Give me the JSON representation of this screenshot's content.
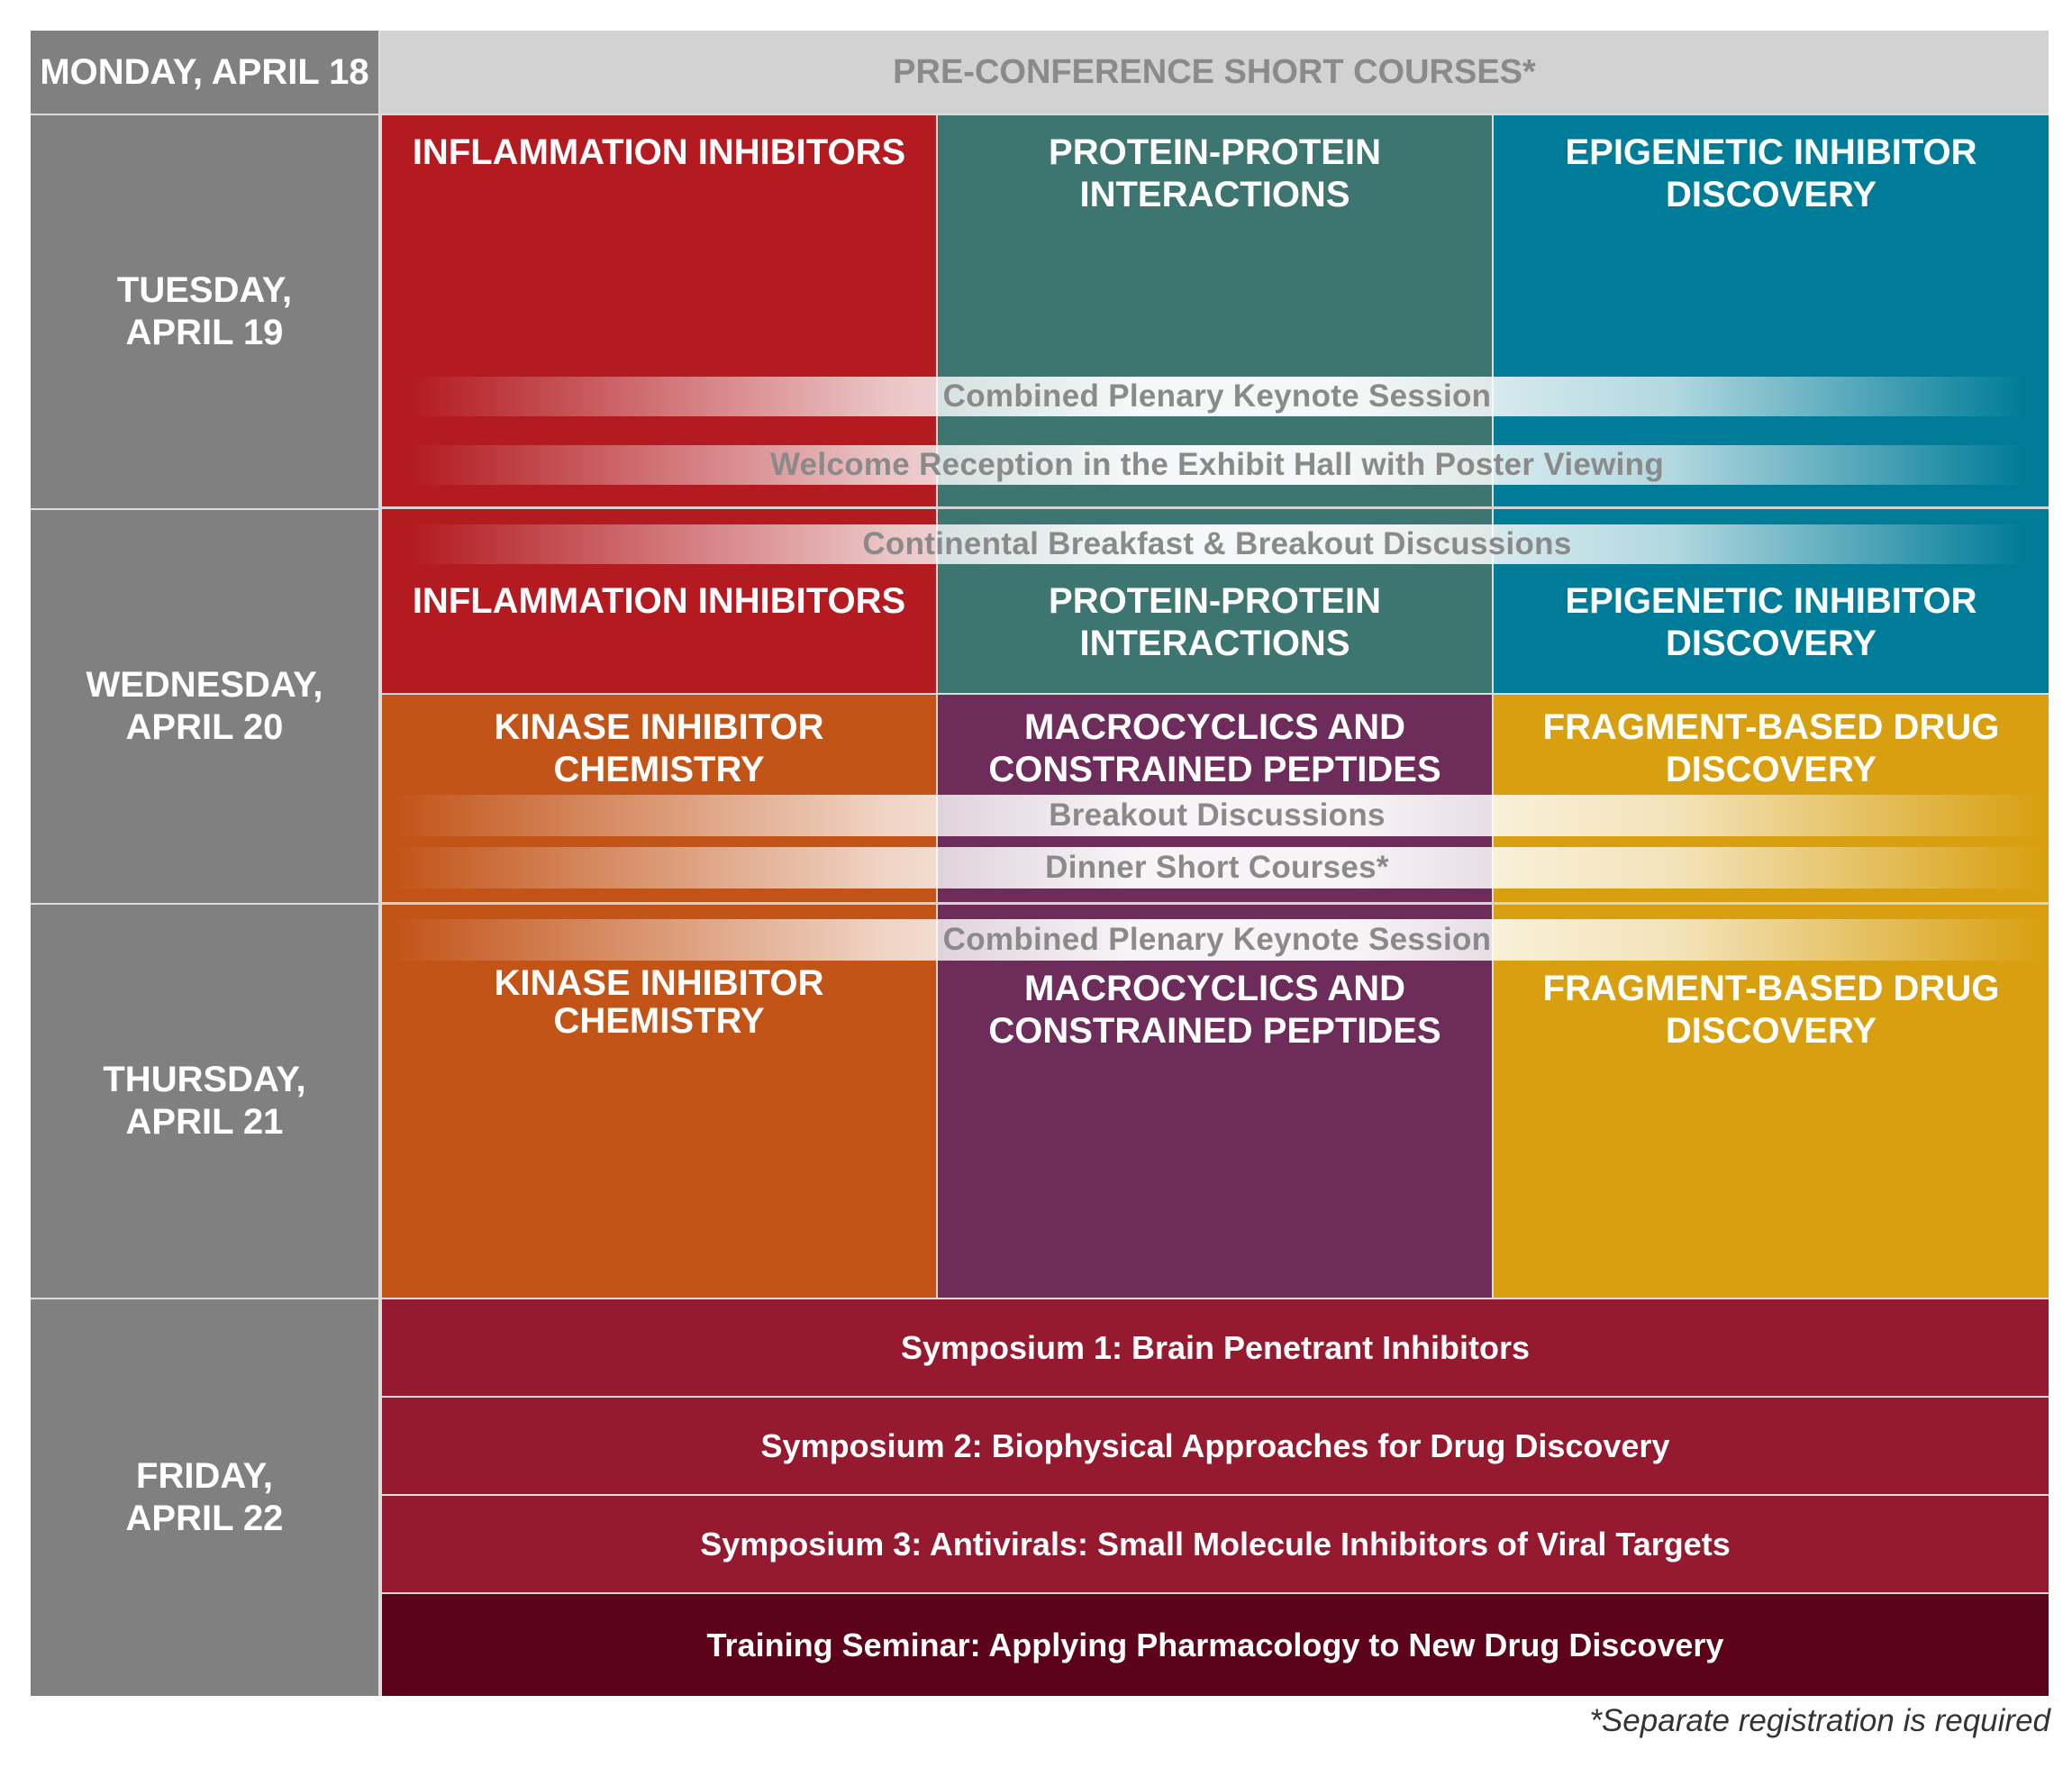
{
  "days": {
    "monday": "MONDAY, APRIL 18",
    "tuesday": "TUESDAY,\nAPRIL 19",
    "wednesday": "WEDNESDAY,\nAPRIL 20",
    "thursday": "THURSDAY,\nAPRIL 21",
    "friday": "FRIDAY,\nAPRIL 22"
  },
  "pre_conference": "PRE-CONFERENCE SHORT COURSES*",
  "tracks": {
    "inflammation": "INFLAMMATION INHIBITORS",
    "ppi": "PROTEIN-PROTEIN\nINTERACTIONS",
    "epigenetic": "EPIGENETIC INHIBITOR\nDISCOVERY",
    "kinase": "KINASE INHIBITOR\nCHEMISTRY",
    "macrocyclics": "MACROCYCLICS AND\nCONSTRAINED PEPTIDES",
    "fragment": "FRAGMENT-BASED DRUG\nDISCOVERY"
  },
  "bands": {
    "tue_keynote": "Combined Plenary Keynote Session",
    "tue_reception": "Welcome Reception in the Exhibit Hall with Poster Viewing",
    "wed_breakfast": "Continental Breakfast & Breakout Discussions",
    "wed_breakout": "Breakout Discussions",
    "wed_dinner": "Dinner Short Courses*",
    "thu_keynote": "Combined Plenary Keynote Session"
  },
  "friday_sessions": [
    "Symposium 1: Brain Penetrant Inhibitors",
    "Symposium 2: Biophysical Approaches for Drug Discovery",
    "Symposium 3: Antivirals: Small Molecule Inhibitors of Viral Targets",
    "Training Seminar: Applying Pharmacology to New Drug Discovery"
  ],
  "footnote": "*Separate registration is required",
  "colors": {
    "day_column": "#808080",
    "header_bar": "#d2d2d2",
    "inflammation": "#b31b20",
    "ppi": "#3d7571",
    "epigenetic": "#007c98",
    "kinase": "#c25418",
    "macrocyclics": "#6e2c5b",
    "fragment": "#d8a010",
    "symposium": "#95192f",
    "training": "#5c0319"
  }
}
